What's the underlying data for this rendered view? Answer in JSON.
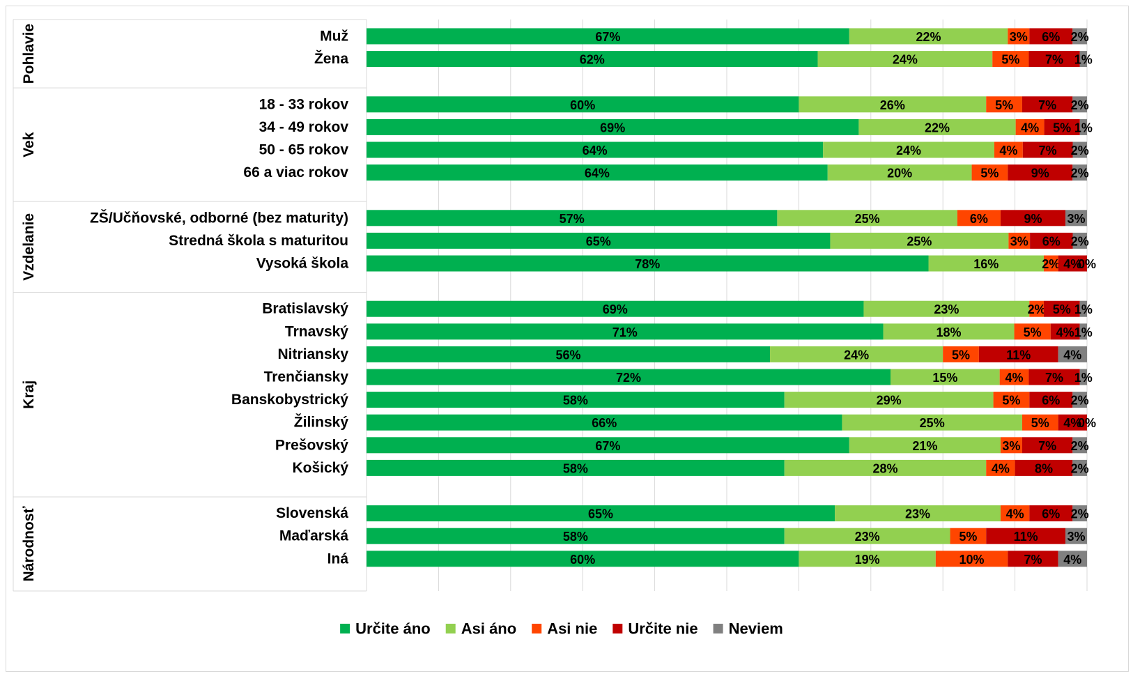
{
  "chart_data": {
    "type": "bar",
    "orientation": "horizontal",
    "stacked": true,
    "percent_stacked": true,
    "xlim": [
      0,
      100
    ],
    "grid": true,
    "legend_position": "bottom",
    "value_format": "{v}%",
    "series": [
      {
        "name": "Určite áno",
        "color": "#00b050"
      },
      {
        "name": "Asi áno",
        "color": "#92d050"
      },
      {
        "name": "Asi nie",
        "color": "#ff4500"
      },
      {
        "name": "Určite nie",
        "color": "#c00000"
      },
      {
        "name": "Neviem",
        "color": "#808080"
      }
    ],
    "groups": [
      {
        "label": "Pohlavie",
        "rows": [
          {
            "label": "Muž",
            "values": [
              67,
              22,
              3,
              6,
              2
            ]
          },
          {
            "label": "Žena",
            "values": [
              62,
              24,
              5,
              7,
              1
            ]
          }
        ]
      },
      {
        "label": "Vek",
        "rows": [
          {
            "label": "18 - 33 rokov",
            "values": [
              60,
              26,
              5,
              7,
              2
            ]
          },
          {
            "label": "34 - 49 rokov",
            "values": [
              69,
              22,
              4,
              5,
              1
            ]
          },
          {
            "label": "50 - 65 rokov",
            "values": [
              64,
              24,
              4,
              7,
              2
            ]
          },
          {
            "label": "66 a viac rokov",
            "values": [
              64,
              20,
              5,
              9,
              2
            ]
          }
        ]
      },
      {
        "label": "Vzdelanie",
        "rows": [
          {
            "label": "ZŠ/Učňovské, odborné (bez maturity)",
            "values": [
              57,
              25,
              6,
              9,
              3
            ]
          },
          {
            "label": "Stredná škola s maturitou",
            "values": [
              65,
              25,
              3,
              6,
              2
            ]
          },
          {
            "label": "Vysoká škola",
            "values": [
              78,
              16,
              2,
              4,
              0
            ]
          }
        ]
      },
      {
        "label": "Kraj",
        "rows": [
          {
            "label": "Bratislavský",
            "values": [
              69,
              23,
              2,
              5,
              1
            ]
          },
          {
            "label": "Trnavský",
            "values": [
              71,
              18,
              5,
              4,
              1
            ]
          },
          {
            "label": "Nitriansky",
            "values": [
              56,
              24,
              5,
              11,
              4
            ]
          },
          {
            "label": "Trenčiansky",
            "values": [
              72,
              15,
              4,
              7,
              1
            ]
          },
          {
            "label": "Banskobystrický",
            "values": [
              58,
              29,
              5,
              6,
              2
            ]
          },
          {
            "label": "Žilinský",
            "values": [
              66,
              25,
              5,
              4,
              0
            ]
          },
          {
            "label": "Prešovský",
            "values": [
              67,
              21,
              3,
              7,
              2
            ]
          },
          {
            "label": "Košický",
            "values": [
              58,
              28,
              4,
              8,
              2
            ]
          }
        ]
      },
      {
        "label": "Národnosť",
        "rows": [
          {
            "label": "Slovenská",
            "values": [
              65,
              23,
              4,
              6,
              2
            ]
          },
          {
            "label": "Maďarská",
            "values": [
              58,
              23,
              5,
              11,
              3
            ]
          },
          {
            "label": "Iná",
            "values": [
              60,
              19,
              10,
              7,
              4
            ]
          }
        ]
      }
    ]
  }
}
